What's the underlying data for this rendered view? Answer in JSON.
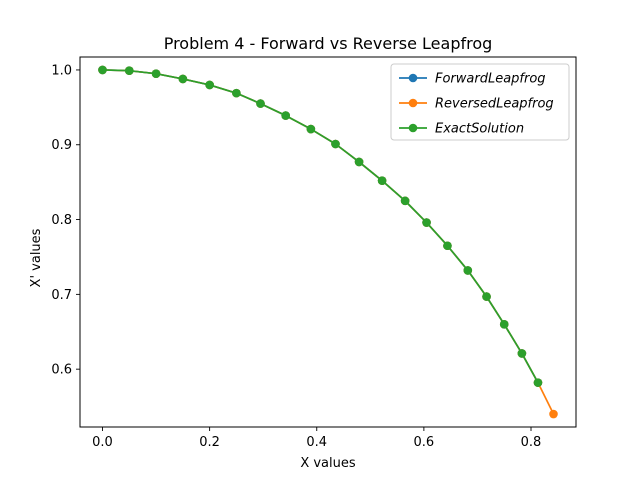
{
  "chart_data": {
    "type": "line",
    "title": "Problem 4 - Forward vs Reverse Leapfrog",
    "xlabel": "X values",
    "ylabel": "X' values",
    "xlim": [
      -0.042,
      0.884
    ],
    "ylim": [
      0.5227,
      1.0173
    ],
    "xticks": [
      0.0,
      0.2,
      0.4,
      0.6,
      0.8
    ],
    "xtick_labels": [
      "0.0",
      "0.2",
      "0.4",
      "0.6",
      "0.8"
    ],
    "yticks": [
      0.6,
      0.7,
      0.8,
      0.9,
      1.0
    ],
    "ytick_labels": [
      "0.6",
      "0.7",
      "0.8",
      "0.9",
      "1.0"
    ],
    "grid": false,
    "legend_position": "top-right",
    "series": [
      {
        "name": "ForwardLeapfrog",
        "color": "#1f77b4",
        "marker": "circle",
        "x": [
          0.0,
          0.05,
          0.1,
          0.15,
          0.2,
          0.25,
          0.295,
          0.342,
          0.389,
          0.435,
          0.479,
          0.522,
          0.565,
          0.605,
          0.644,
          0.682,
          0.717,
          0.75,
          0.783,
          0.813
        ],
        "y": [
          1.0,
          0.999,
          0.995,
          0.988,
          0.98,
          0.969,
          0.955,
          0.939,
          0.921,
          0.901,
          0.877,
          0.852,
          0.825,
          0.796,
          0.765,
          0.732,
          0.697,
          0.66,
          0.621,
          0.582
        ]
      },
      {
        "name": "ReversedLeapfrog",
        "color": "#ff7f0e",
        "marker": "circle",
        "x": [
          0.0,
          0.05,
          0.1,
          0.15,
          0.2,
          0.25,
          0.295,
          0.342,
          0.389,
          0.435,
          0.479,
          0.522,
          0.565,
          0.605,
          0.644,
          0.682,
          0.717,
          0.75,
          0.783,
          0.813,
          0.842
        ],
        "y": [
          1.0,
          0.999,
          0.995,
          0.988,
          0.98,
          0.969,
          0.955,
          0.939,
          0.921,
          0.901,
          0.877,
          0.852,
          0.825,
          0.796,
          0.765,
          0.732,
          0.697,
          0.66,
          0.621,
          0.582,
          0.54
        ]
      },
      {
        "name": "ExactSolution",
        "color": "#2ca02c",
        "marker": "circle",
        "x": [
          0.0,
          0.05,
          0.1,
          0.15,
          0.2,
          0.25,
          0.295,
          0.342,
          0.389,
          0.435,
          0.479,
          0.522,
          0.565,
          0.605,
          0.644,
          0.682,
          0.717,
          0.75,
          0.783,
          0.813
        ],
        "y": [
          1.0,
          0.999,
          0.995,
          0.988,
          0.98,
          0.969,
          0.955,
          0.939,
          0.921,
          0.901,
          0.877,
          0.852,
          0.825,
          0.796,
          0.765,
          0.732,
          0.697,
          0.66,
          0.621,
          0.582
        ]
      }
    ]
  }
}
